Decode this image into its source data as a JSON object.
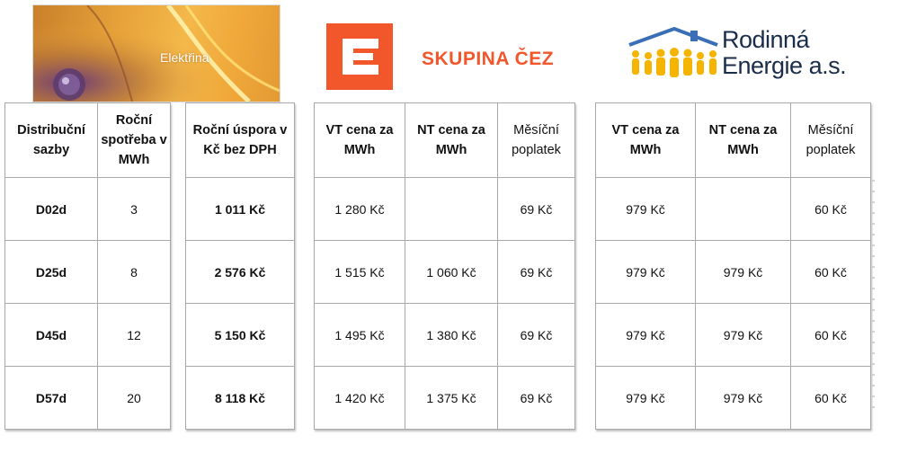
{
  "header": {
    "hero_label": "Elektřina",
    "cez_name": "SKUPINA ČEZ",
    "re_name": "Rodinná\nEnergie a.s."
  },
  "colors": {
    "cez_orange": "#f2572b",
    "re_navy": "#1a2d4a",
    "re_blue": "#3a6fb7",
    "re_yellow": "#f5b400"
  },
  "rates_table": {
    "headers": [
      "Distribuční sazby",
      "Roční spotřeba v MWh"
    ],
    "rows": [
      [
        "D02d",
        "3"
      ],
      [
        "D25d",
        "8"
      ],
      [
        "D45d",
        "12"
      ],
      [
        "D57d",
        "20"
      ]
    ]
  },
  "savings_table": {
    "header": "Roční úspora v Kč bez DPH",
    "rows": [
      "1 011 Kč",
      "2 576 Kč",
      "5 150 Kč",
      "8 118 Kč"
    ]
  },
  "cez_table": {
    "headers": [
      "VT cena za MWh",
      "NT cena za MWh",
      "Měsíční poplatek"
    ],
    "rows": [
      [
        "1 280 Kč",
        "",
        "69 Kč"
      ],
      [
        "1 515 Kč",
        "1 060 Kč",
        "69 Kč"
      ],
      [
        "1 495 Kč",
        "1 380 Kč",
        "69 Kč"
      ],
      [
        "1 420 Kč",
        "1 375 Kč",
        "69 Kč"
      ]
    ]
  },
  "re_table": {
    "headers": [
      "VT cena za MWh",
      "NT cena za MWh",
      "Měsíční poplatek"
    ],
    "rows": [
      [
        "979 Kč",
        "",
        "60 Kč"
      ],
      [
        "979 Kč",
        "979 Kč",
        "60 Kč"
      ],
      [
        "979 Kč",
        "979 Kč",
        "60 Kč"
      ],
      [
        "979 Kč",
        "979 Kč",
        "60 Kč"
      ]
    ]
  }
}
